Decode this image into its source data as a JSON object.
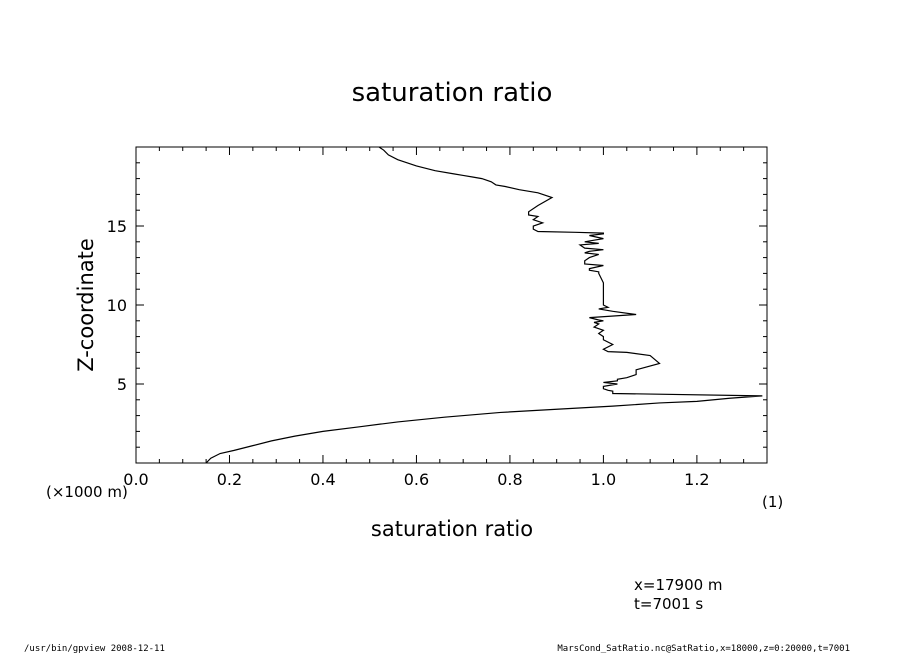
{
  "chart_data": {
    "type": "line",
    "title": "saturation ratio",
    "xlabel": "saturation ratio",
    "ylabel": "Z-coordinate",
    "x_unit_label": "(1)",
    "y_unit_label": "(×1000 m)",
    "xlim": [
      0.0,
      1.35
    ],
    "ylim": [
      0,
      20
    ],
    "x_ticks": [
      "0.0",
      "0.2",
      "0.4",
      "0.6",
      "0.8",
      "1.0",
      "1.2"
    ],
    "x_tick_values": [
      0.0,
      0.2,
      0.4,
      0.6,
      0.8,
      1.0,
      1.2
    ],
    "y_ticks": [
      "5",
      "10",
      "15"
    ],
    "y_tick_values": [
      5,
      10,
      15
    ],
    "series": [
      {
        "x": [
          0.15,
          0.16,
          0.18,
          0.21,
          0.25,
          0.29,
          0.34,
          0.4,
          0.48,
          0.56,
          0.66,
          0.78,
          0.9,
          1.02,
          1.12,
          1.2,
          1.27,
          1.34,
          1.02,
          1.02,
          1.01,
          1.0,
          1.0,
          1.03,
          1.0,
          1.03,
          1.03,
          1.05,
          1.07,
          1.07,
          1.12,
          1.1,
          1.05,
          1.01,
          1.0,
          1.02,
          1.0,
          1.0,
          0.99,
          1.0,
          0.98,
          0.99,
          0.98,
          1.0,
          0.99,
          0.97,
          1.07,
          1.02,
          0.99,
          1.01,
          1.0,
          1.0,
          1.0,
          1.0,
          0.99,
          0.99,
          0.97,
          0.97,
          1.0,
          0.96,
          0.96,
          0.97,
          0.99,
          0.96,
          0.97,
          1.0,
          0.96,
          0.95,
          0.99,
          0.96,
          0.98,
          1.0,
          0.97,
          1.0,
          1.0,
          0.94,
          0.86,
          0.85,
          0.85,
          0.87,
          0.85,
          0.86,
          0.84,
          0.84,
          0.86,
          0.89,
          0.86,
          0.82,
          0.79,
          0.77,
          0.76,
          0.74,
          0.72,
          0.7,
          0.68,
          0.64,
          0.6,
          0.56,
          0.54,
          0.53,
          0.52
        ],
        "y": [
          0.0,
          0.3,
          0.6,
          0.8,
          1.1,
          1.4,
          1.7,
          2.0,
          2.3,
          2.6,
          2.9,
          3.2,
          3.4,
          3.6,
          3.8,
          3.9,
          4.1,
          4.25,
          4.4,
          4.55,
          4.6,
          4.7,
          4.85,
          5.0,
          5.1,
          5.2,
          5.3,
          5.4,
          5.6,
          5.9,
          6.3,
          6.8,
          7.0,
          7.05,
          7.2,
          7.5,
          7.8,
          8.0,
          8.2,
          8.4,
          8.6,
          8.8,
          8.9,
          9.0,
          9.05,
          9.2,
          9.4,
          9.6,
          9.75,
          9.85,
          10.0,
          10.4,
          10.9,
          11.4,
          12.0,
          12.1,
          12.2,
          12.3,
          12.5,
          12.6,
          12.8,
          13.0,
          13.2,
          13.3,
          13.4,
          13.5,
          13.6,
          13.8,
          13.9,
          14.0,
          14.1,
          14.2,
          14.4,
          14.5,
          14.55,
          14.6,
          14.65,
          14.8,
          15.0,
          15.2,
          15.4,
          15.6,
          15.7,
          15.9,
          16.3,
          16.8,
          17.1,
          17.3,
          17.5,
          17.6,
          17.8,
          18.0,
          18.1,
          18.2,
          18.3,
          18.5,
          18.8,
          19.2,
          19.5,
          19.8,
          20.0
        ]
      }
    ],
    "annotations": [
      "x=17900 m",
      "t=7001 s"
    ],
    "grid": false,
    "legend": "none"
  },
  "footer": {
    "left": "/usr/bin/gpview   2008-12-11",
    "right": "MarsCond_SatRatio.nc@SatRatio,x=18000,z=0:20000,t=7001"
  }
}
